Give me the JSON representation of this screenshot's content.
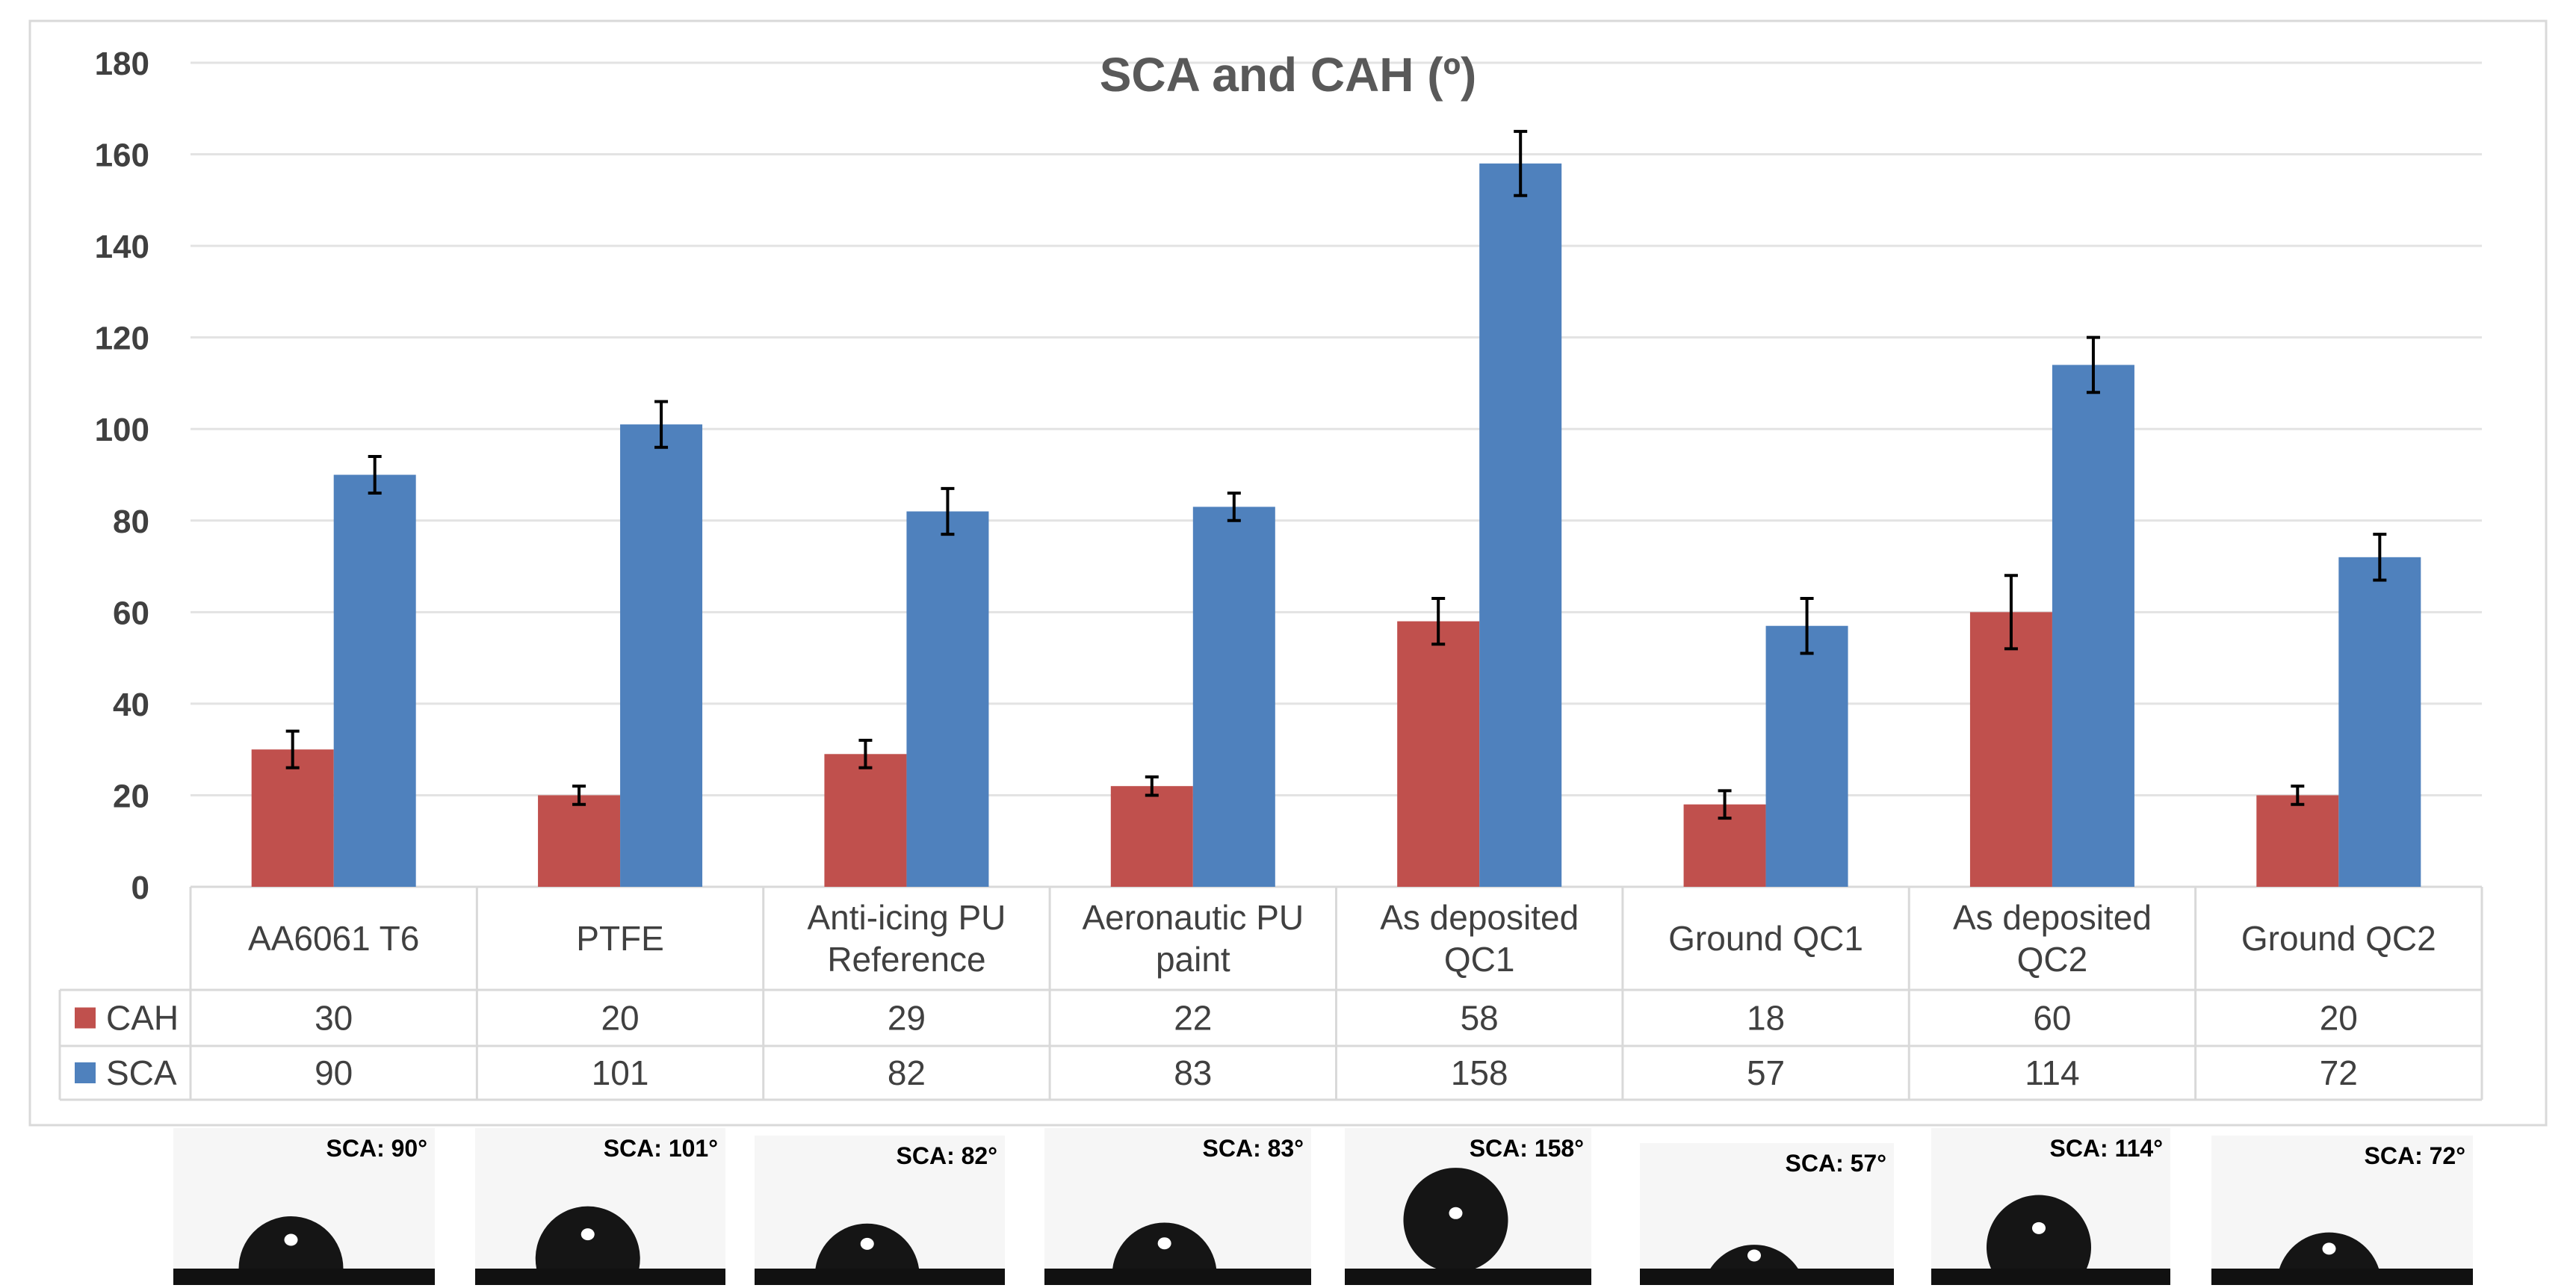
{
  "chart_data": {
    "type": "bar",
    "title": "SCA and CAH (º)",
    "categories": [
      [
        "AA6061 T6"
      ],
      [
        "PTFE"
      ],
      [
        "Anti-icing PU",
        "Reference"
      ],
      [
        "Aeronautic PU",
        "paint"
      ],
      [
        "As deposited",
        "QC1"
      ],
      [
        "Ground QC1"
      ],
      [
        "As deposited",
        "QC2"
      ],
      [
        "Ground QC2"
      ]
    ],
    "series": [
      {
        "name": "CAH",
        "color": "#C0504D",
        "values": [
          30,
          20,
          29,
          22,
          58,
          18,
          60,
          20
        ],
        "errors": [
          4,
          2,
          3,
          2,
          5,
          3,
          8,
          2
        ]
      },
      {
        "name": "SCA",
        "color": "#4F81BD",
        "values": [
          90,
          101,
          82,
          83,
          158,
          57,
          114,
          72
        ],
        "errors": [
          4,
          5,
          5,
          3,
          7,
          6,
          6,
          5
        ]
      }
    ],
    "ylim": [
      0,
      180
    ],
    "yticks": [
      0,
      20,
      40,
      60,
      80,
      100,
      120,
      140,
      160,
      180
    ],
    "grid": true,
    "data_table": true
  },
  "images": {
    "labels": [
      "SCA: 90°",
      "SCA: 101°",
      "SCA: 82°",
      "SCA: 83°",
      "SCA: 158°",
      "SCA: 57°",
      "SCA: 114°",
      "SCA: 72°"
    ],
    "contact_angles": [
      90,
      101,
      82,
      83,
      158,
      57,
      114,
      72
    ]
  }
}
